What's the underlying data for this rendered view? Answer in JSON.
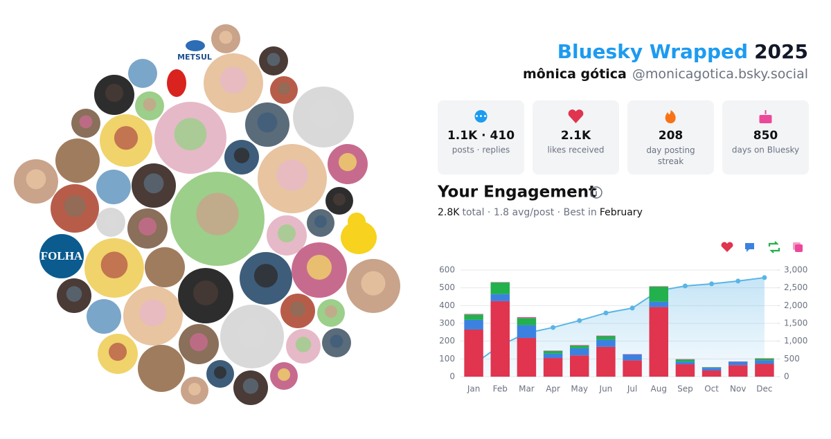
{
  "header": {
    "title": "Bluesky Wrapped",
    "year": "2025",
    "name": "mônica gótica",
    "handle": "@monicagotica.bsky.social"
  },
  "stats": [
    {
      "value": "1.1K · 410",
      "label": "posts · replies"
    },
    {
      "value": "2.1K",
      "label": "likes received"
    },
    {
      "value": "208",
      "label": "day posting streak"
    },
    {
      "value": "850",
      "label": "days on Bluesky"
    }
  ],
  "engagement": {
    "title": "Your Engagement",
    "total": "2.8K",
    "summary": "total · 1.8 avg/post · Best in",
    "best": "February"
  },
  "avatars": {
    "labels": [
      "FOLHA",
      "METSUL"
    ]
  },
  "chart_data": {
    "type": "bar",
    "categories": [
      "Jan",
      "Feb",
      "Mar",
      "Apr",
      "May",
      "Jun",
      "Jul",
      "Aug",
      "Sep",
      "Oct",
      "Nov",
      "Dec"
    ],
    "series": [
      {
        "color": "#e0344f",
        "values": [
          265,
          425,
          218,
          105,
          120,
          168,
          92,
          392,
          70,
          35,
          65,
          72
        ]
      },
      {
        "color": "#3b82e0",
        "values": [
          55,
          40,
          72,
          25,
          40,
          40,
          33,
          30,
          15,
          15,
          20,
          20
        ]
      },
      {
        "color": "#22b14c",
        "values": [
          30,
          65,
          40,
          15,
          15,
          20,
          0,
          85,
          12,
          3,
          0,
          10
        ]
      },
      {
        "color": "#ec4899",
        "values": [
          3,
          2,
          5,
          2,
          3,
          3,
          2,
          2,
          2,
          1,
          1,
          2
        ]
      },
      {
        "type": "line",
        "axis": "y2",
        "color": "#5ab4e6",
        "values": [
          350,
          880,
          1225,
          1384,
          1579,
          1793,
          1930,
          2417,
          2553,
          2612,
          2690,
          2787
        ]
      }
    ],
    "ylim": [
      0,
      600
    ],
    "yticks": [
      0,
      100,
      200,
      300,
      400,
      500,
      600
    ],
    "y2lim": [
      0,
      3000
    ],
    "y2ticks": [
      0,
      500,
      {
        "value": 1000,
        "label": "1,000"
      },
      {
        "value": 1500,
        "label": "1,500"
      },
      {
        "value": 2000,
        "label": "2,000"
      },
      {
        "value": 2500,
        "label": "2,500"
      },
      {
        "value": 3000,
        "label": "3,000"
      }
    ],
    "grid": true
  }
}
